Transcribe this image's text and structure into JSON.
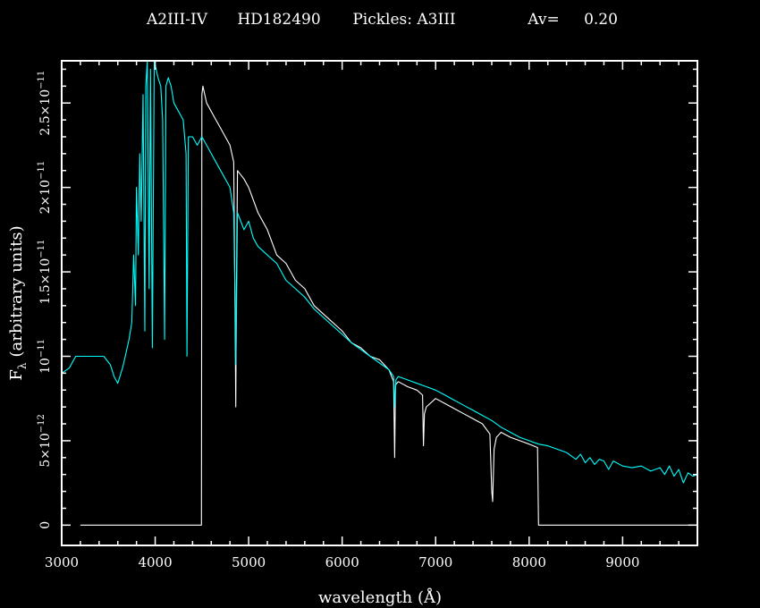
{
  "chart_data": {
    "type": "line",
    "title": {
      "spectral_type": "A2III-IV",
      "star": "HD182490",
      "template": "Pickles:  A3III",
      "av_label": "Av=",
      "av_value": "0.20"
    },
    "xlabel": "wavelength (Å)",
    "ylabel": {
      "main": "F",
      "sub": "λ",
      "rest": "(arbitrary units)"
    },
    "xlim": [
      3000,
      9800
    ],
    "ylim": [
      -1.2e-12,
      2.75e-11
    ],
    "x_ticks": [
      {
        "value": 3000,
        "label": "3000"
      },
      {
        "value": 4000,
        "label": "4000"
      },
      {
        "value": 5000,
        "label": "5000"
      },
      {
        "value": 6000,
        "label": "6000"
      },
      {
        "value": 7000,
        "label": "7000"
      },
      {
        "value": 8000,
        "label": "8000"
      },
      {
        "value": 9000,
        "label": "9000"
      }
    ],
    "y_ticks": [
      {
        "value": 0,
        "mant": "0",
        "exp": ""
      },
      {
        "value": 5e-12,
        "mant": "5×10",
        "exp": "−12"
      },
      {
        "value": 1e-11,
        "mant": "10",
        "exp": "−11"
      },
      {
        "value": 1.5e-11,
        "mant": "1.5×10",
        "exp": "−11"
      },
      {
        "value": 2e-11,
        "mant": "2×10",
        "exp": "−11"
      },
      {
        "value": 2.5e-11,
        "mant": "2.5×10",
        "exp": "−11"
      }
    ],
    "series": [
      {
        "color": "#ffffff",
        "points": [
          [
            3200,
            0.0
          ],
          [
            4495,
            0.0
          ],
          [
            4500,
            2.55e-11
          ],
          [
            4510,
            2.6e-11
          ],
          [
            4550,
            2.5e-11
          ],
          [
            4600,
            2.45e-11
          ],
          [
            4650,
            2.4e-11
          ],
          [
            4700,
            2.35e-11
          ],
          [
            4750,
            2.3e-11
          ],
          [
            4800,
            2.25e-11
          ],
          [
            4840,
            2.15e-11
          ],
          [
            4855,
            1.2e-11
          ],
          [
            4862,
            7e-12
          ],
          [
            4868,
            1.3e-11
          ],
          [
            4880,
            2.1e-11
          ],
          [
            4950,
            2.05e-11
          ],
          [
            5000,
            2e-11
          ],
          [
            5100,
            1.85e-11
          ],
          [
            5200,
            1.75e-11
          ],
          [
            5300,
            1.6e-11
          ],
          [
            5400,
            1.55e-11
          ],
          [
            5500,
            1.45e-11
          ],
          [
            5600,
            1.4e-11
          ],
          [
            5700,
            1.3e-11
          ],
          [
            5800,
            1.25e-11
          ],
          [
            5900,
            1.2e-11
          ],
          [
            6000,
            1.15e-11
          ],
          [
            6100,
            1.08e-11
          ],
          [
            6200,
            1.05e-11
          ],
          [
            6300,
            1e-11
          ],
          [
            6400,
            9.8e-12
          ],
          [
            6500,
            9.2e-12
          ],
          [
            6550,
            8.5e-12
          ],
          [
            6562,
            4e-12
          ],
          [
            6570,
            8.3e-12
          ],
          [
            6600,
            8.5e-12
          ],
          [
            6700,
            8.2e-12
          ],
          [
            6800,
            8e-12
          ],
          [
            6860,
            7.7e-12
          ],
          [
            6870,
            4.7e-12
          ],
          [
            6880,
            6.6e-12
          ],
          [
            6900,
            7e-12
          ],
          [
            7000,
            7.5e-12
          ],
          [
            7100,
            7.2e-12
          ],
          [
            7200,
            6.9e-12
          ],
          [
            7300,
            6.6e-12
          ],
          [
            7400,
            6.3e-12
          ],
          [
            7500,
            6e-12
          ],
          [
            7580,
            5.4e-12
          ],
          [
            7600,
            2e-12
          ],
          [
            7610,
            1.4e-12
          ],
          [
            7625,
            4.5e-12
          ],
          [
            7650,
            5.2e-12
          ],
          [
            7700,
            5.5e-12
          ],
          [
            7800,
            5.2e-12
          ],
          [
            7900,
            5e-12
          ],
          [
            8000,
            4.8e-12
          ],
          [
            8090,
            4.6e-12
          ],
          [
            8100,
            0.0
          ],
          [
            9800,
            0.0
          ]
        ]
      },
      {
        "color": "#00ffff",
        "points": [
          [
            3000,
            9e-12
          ],
          [
            3080,
            9.3e-12
          ],
          [
            3150,
            1e-11
          ],
          [
            3250,
            1e-11
          ],
          [
            3350,
            1e-11
          ],
          [
            3450,
            1e-11
          ],
          [
            3520,
            9.5e-12
          ],
          [
            3560,
            8.8e-12
          ],
          [
            3600,
            8.4e-12
          ],
          [
            3650,
            9.3e-12
          ],
          [
            3680,
            1e-11
          ],
          [
            3720,
            1.1e-11
          ],
          [
            3750,
            1.2e-11
          ],
          [
            3770,
            1.6e-11
          ],
          [
            3790,
            1.3e-11
          ],
          [
            3800,
            2e-11
          ],
          [
            3820,
            1.6e-11
          ],
          [
            3835,
            2.2e-11
          ],
          [
            3850,
            1.8e-11
          ],
          [
            3870,
            2.55e-11
          ],
          [
            3889,
            1.15e-11
          ],
          [
            3900,
            2.6e-11
          ],
          [
            3915,
            2.8e-11
          ],
          [
            3935,
            1.4e-11
          ],
          [
            3950,
            2.7e-11
          ],
          [
            3970,
            1.05e-11
          ],
          [
            3990,
            2.8e-11
          ],
          [
            4010,
            2.7e-11
          ],
          [
            4030,
            2.65e-11
          ],
          [
            4060,
            2.6e-11
          ],
          [
            4080,
            2.4e-11
          ],
          [
            4101,
            1.1e-11
          ],
          [
            4115,
            2.6e-11
          ],
          [
            4140,
            2.65e-11
          ],
          [
            4170,
            2.6e-11
          ],
          [
            4200,
            2.5e-11
          ],
          [
            4250,
            2.45e-11
          ],
          [
            4300,
            2.4e-11
          ],
          [
            4330,
            2.2e-11
          ],
          [
            4340,
            1e-11
          ],
          [
            4355,
            2.3e-11
          ],
          [
            4400,
            2.3e-11
          ],
          [
            4450,
            2.25e-11
          ],
          [
            4500,
            2.3e-11
          ],
          [
            4550,
            2.25e-11
          ],
          [
            4600,
            2.2e-11
          ],
          [
            4650,
            2.15e-11
          ],
          [
            4700,
            2.1e-11
          ],
          [
            4750,
            2.05e-11
          ],
          [
            4800,
            2e-11
          ],
          [
            4840,
            1.85e-11
          ],
          [
            4858,
            1.2e-11
          ],
          [
            4863,
            9.5e-12
          ],
          [
            4870,
            1.3e-11
          ],
          [
            4880,
            1.85e-11
          ],
          [
            4950,
            1.75e-11
          ],
          [
            5000,
            1.8e-11
          ],
          [
            5050,
            1.7e-11
          ],
          [
            5100,
            1.65e-11
          ],
          [
            5200,
            1.6e-11
          ],
          [
            5300,
            1.55e-11
          ],
          [
            5400,
            1.45e-11
          ],
          [
            5500,
            1.4e-11
          ],
          [
            5600,
            1.35e-11
          ],
          [
            5700,
            1.28e-11
          ],
          [
            5800,
            1.23e-11
          ],
          [
            5900,
            1.18e-11
          ],
          [
            6000,
            1.13e-11
          ],
          [
            6100,
            1.08e-11
          ],
          [
            6200,
            1.04e-11
          ],
          [
            6300,
            1e-11
          ],
          [
            6400,
            9.6e-12
          ],
          [
            6500,
            9.2e-12
          ],
          [
            6550,
            8.8e-12
          ],
          [
            6562,
            7e-12
          ],
          [
            6575,
            8.6e-12
          ],
          [
            6600,
            8.8e-12
          ],
          [
            6700,
            8.6e-12
          ],
          [
            6800,
            8.4e-12
          ],
          [
            6900,
            8.2e-12
          ],
          [
            7000,
            8e-12
          ],
          [
            7100,
            7.7e-12
          ],
          [
            7200,
            7.4e-12
          ],
          [
            7300,
            7.1e-12
          ],
          [
            7400,
            6.8e-12
          ],
          [
            7500,
            6.5e-12
          ],
          [
            7600,
            6.2e-12
          ],
          [
            7700,
            5.8e-12
          ],
          [
            7800,
            5.5e-12
          ],
          [
            7900,
            5.2e-12
          ],
          [
            8000,
            5e-12
          ],
          [
            8100,
            4.8e-12
          ],
          [
            8200,
            4.7e-12
          ],
          [
            8300,
            4.5e-12
          ],
          [
            8400,
            4.3e-12
          ],
          [
            8500,
            3.9e-12
          ],
          [
            8550,
            4.2e-12
          ],
          [
            8600,
            3.7e-12
          ],
          [
            8650,
            4e-12
          ],
          [
            8700,
            3.6e-12
          ],
          [
            8750,
            3.9e-12
          ],
          [
            8800,
            3.8e-12
          ],
          [
            8850,
            3.3e-12
          ],
          [
            8900,
            3.8e-12
          ],
          [
            9000,
            3.5e-12
          ],
          [
            9100,
            3.4e-12
          ],
          [
            9200,
            3.5e-12
          ],
          [
            9300,
            3.2e-12
          ],
          [
            9400,
            3.4e-12
          ],
          [
            9450,
            3e-12
          ],
          [
            9500,
            3.5e-12
          ],
          [
            9550,
            2.9e-12
          ],
          [
            9600,
            3.3e-12
          ],
          [
            9650,
            2.5e-12
          ],
          [
            9700,
            3.1e-12
          ],
          [
            9750,
            2.9e-12
          ],
          [
            9800,
            3e-12
          ]
        ]
      }
    ]
  }
}
